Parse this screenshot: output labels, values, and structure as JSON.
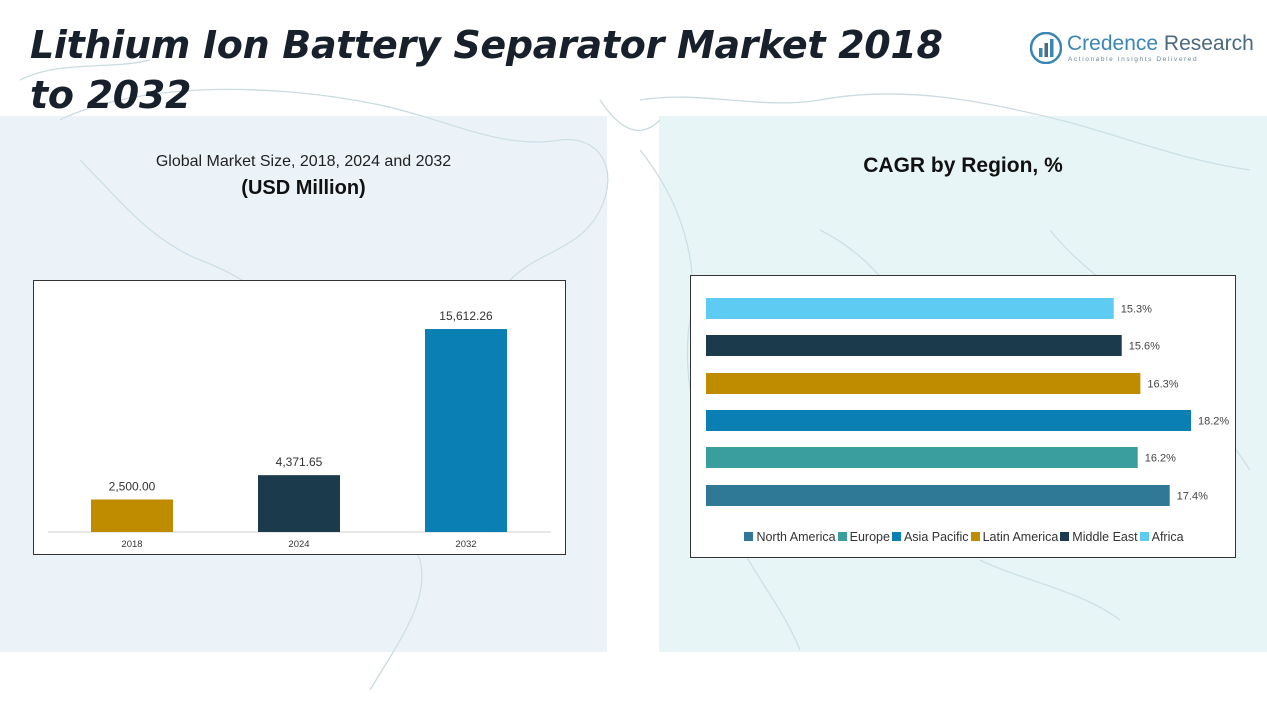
{
  "header": {
    "title": "Lithium Ion Battery Separator Market 2018 to 2032"
  },
  "logo": {
    "name_part1": "Credence",
    "name_part2": "Research",
    "tagline": "Actionable Insights Delivered"
  },
  "left_panel": {
    "subtitle": "Global Market Size, 2018, 2024 and 2032",
    "unit": "(USD Million)"
  },
  "right_panel": {
    "title": "CAGR by Region, %"
  },
  "chart_data": [
    {
      "type": "bar",
      "categories": [
        "2018",
        "2024",
        "2032"
      ],
      "values": [
        2500.0,
        4371.65,
        15612.26
      ],
      "value_labels": [
        "2,500.00",
        "4,371.65",
        "15,612.26"
      ],
      "colors": [
        "#bf8c00",
        "#1b3a4b",
        "#0a7fb4"
      ],
      "ylim": [
        0,
        17000
      ],
      "grid": false
    },
    {
      "type": "bar",
      "orientation": "horizontal",
      "series": [
        {
          "name": "North America",
          "value": 17.4,
          "label": "17.4%",
          "color": "#2f7896"
        },
        {
          "name": "Europe",
          "value": 16.2,
          "label": "16.2%",
          "color": "#3a9e9f"
        },
        {
          "name": "Asia Pacific",
          "value": 18.2,
          "label": "18.2%",
          "color": "#0a7fb4"
        },
        {
          "name": "Latin America",
          "value": 16.3,
          "label": "16.3%",
          "color": "#bf8c00"
        },
        {
          "name": "Middle East",
          "value": 15.6,
          "label": "15.6%",
          "color": "#1b3a4b"
        },
        {
          "name": "Africa",
          "value": 15.3,
          "label": "15.3%",
          "color": "#5ecbf2"
        }
      ],
      "xlim": [
        0,
        18.2
      ],
      "legend_position": "bottom",
      "grid": false
    }
  ]
}
